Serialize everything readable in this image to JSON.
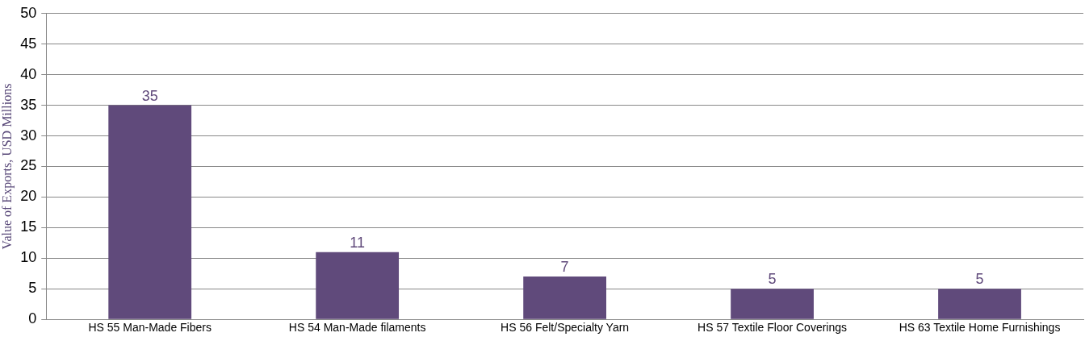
{
  "chart_data": {
    "type": "bar",
    "ylabel": "Value of Exports, USD Millions",
    "categories": [
      "HS 55 Man-Made Fibers",
      "HS 54 Man-Made filaments",
      "HS 56 Felt/Specialty Yarn",
      "HS 57 Textile Floor Coverings",
      "HS 63 Textile Home Furnishings"
    ],
    "series": [
      {
        "color": "#604a7b",
        "values": [
          35,
          11,
          7,
          5,
          5
        ]
      }
    ],
    "ylim": [
      0,
      50
    ],
    "yticks": [
      0,
      5,
      10,
      15,
      20,
      25,
      30,
      35,
      40,
      45,
      50
    ],
    "grid": "y",
    "data_labels": true,
    "legend": false
  }
}
